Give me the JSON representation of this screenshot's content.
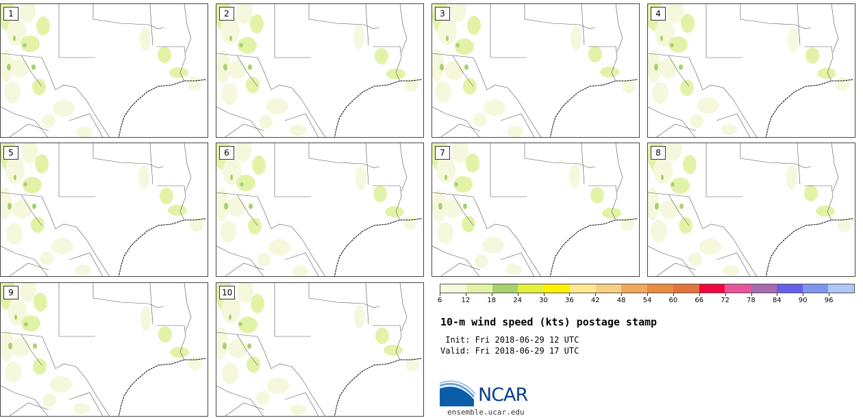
{
  "title": "10-m wind speed (kts) postage stamp",
  "init_line": " Init: Fri 2018-06-29 12 UTC",
  "valid_line": "Valid: Fri 2018-06-29 17 UTC",
  "logo_text": "NCAR",
  "logo_url": "ensemble.ucar.edu",
  "panels": [
    {
      "label": "1"
    },
    {
      "label": "2"
    },
    {
      "label": "3"
    },
    {
      "label": "4"
    },
    {
      "label": "5"
    },
    {
      "label": "6"
    },
    {
      "label": "7"
    },
    {
      "label": "8"
    },
    {
      "label": "9"
    },
    {
      "label": "10"
    }
  ],
  "legend": {
    "ticks": [
      "6",
      "12",
      "18",
      "24",
      "30",
      "36",
      "42",
      "48",
      "54",
      "60",
      "66",
      "72",
      "78",
      "84",
      "90",
      "96"
    ],
    "colors": [
      "#f5f8dc",
      "#e2f3a8",
      "#a9d16e",
      "#e4f03c",
      "#ffef00",
      "#ffe88e",
      "#f8cf82",
      "#f0a85a",
      "#ea8c3d",
      "#e4723c",
      "#f0073f",
      "#e8539c",
      "#a86ab0",
      "#6460ea",
      "#7c96f0",
      "#b0c6f8"
    ]
  }
}
